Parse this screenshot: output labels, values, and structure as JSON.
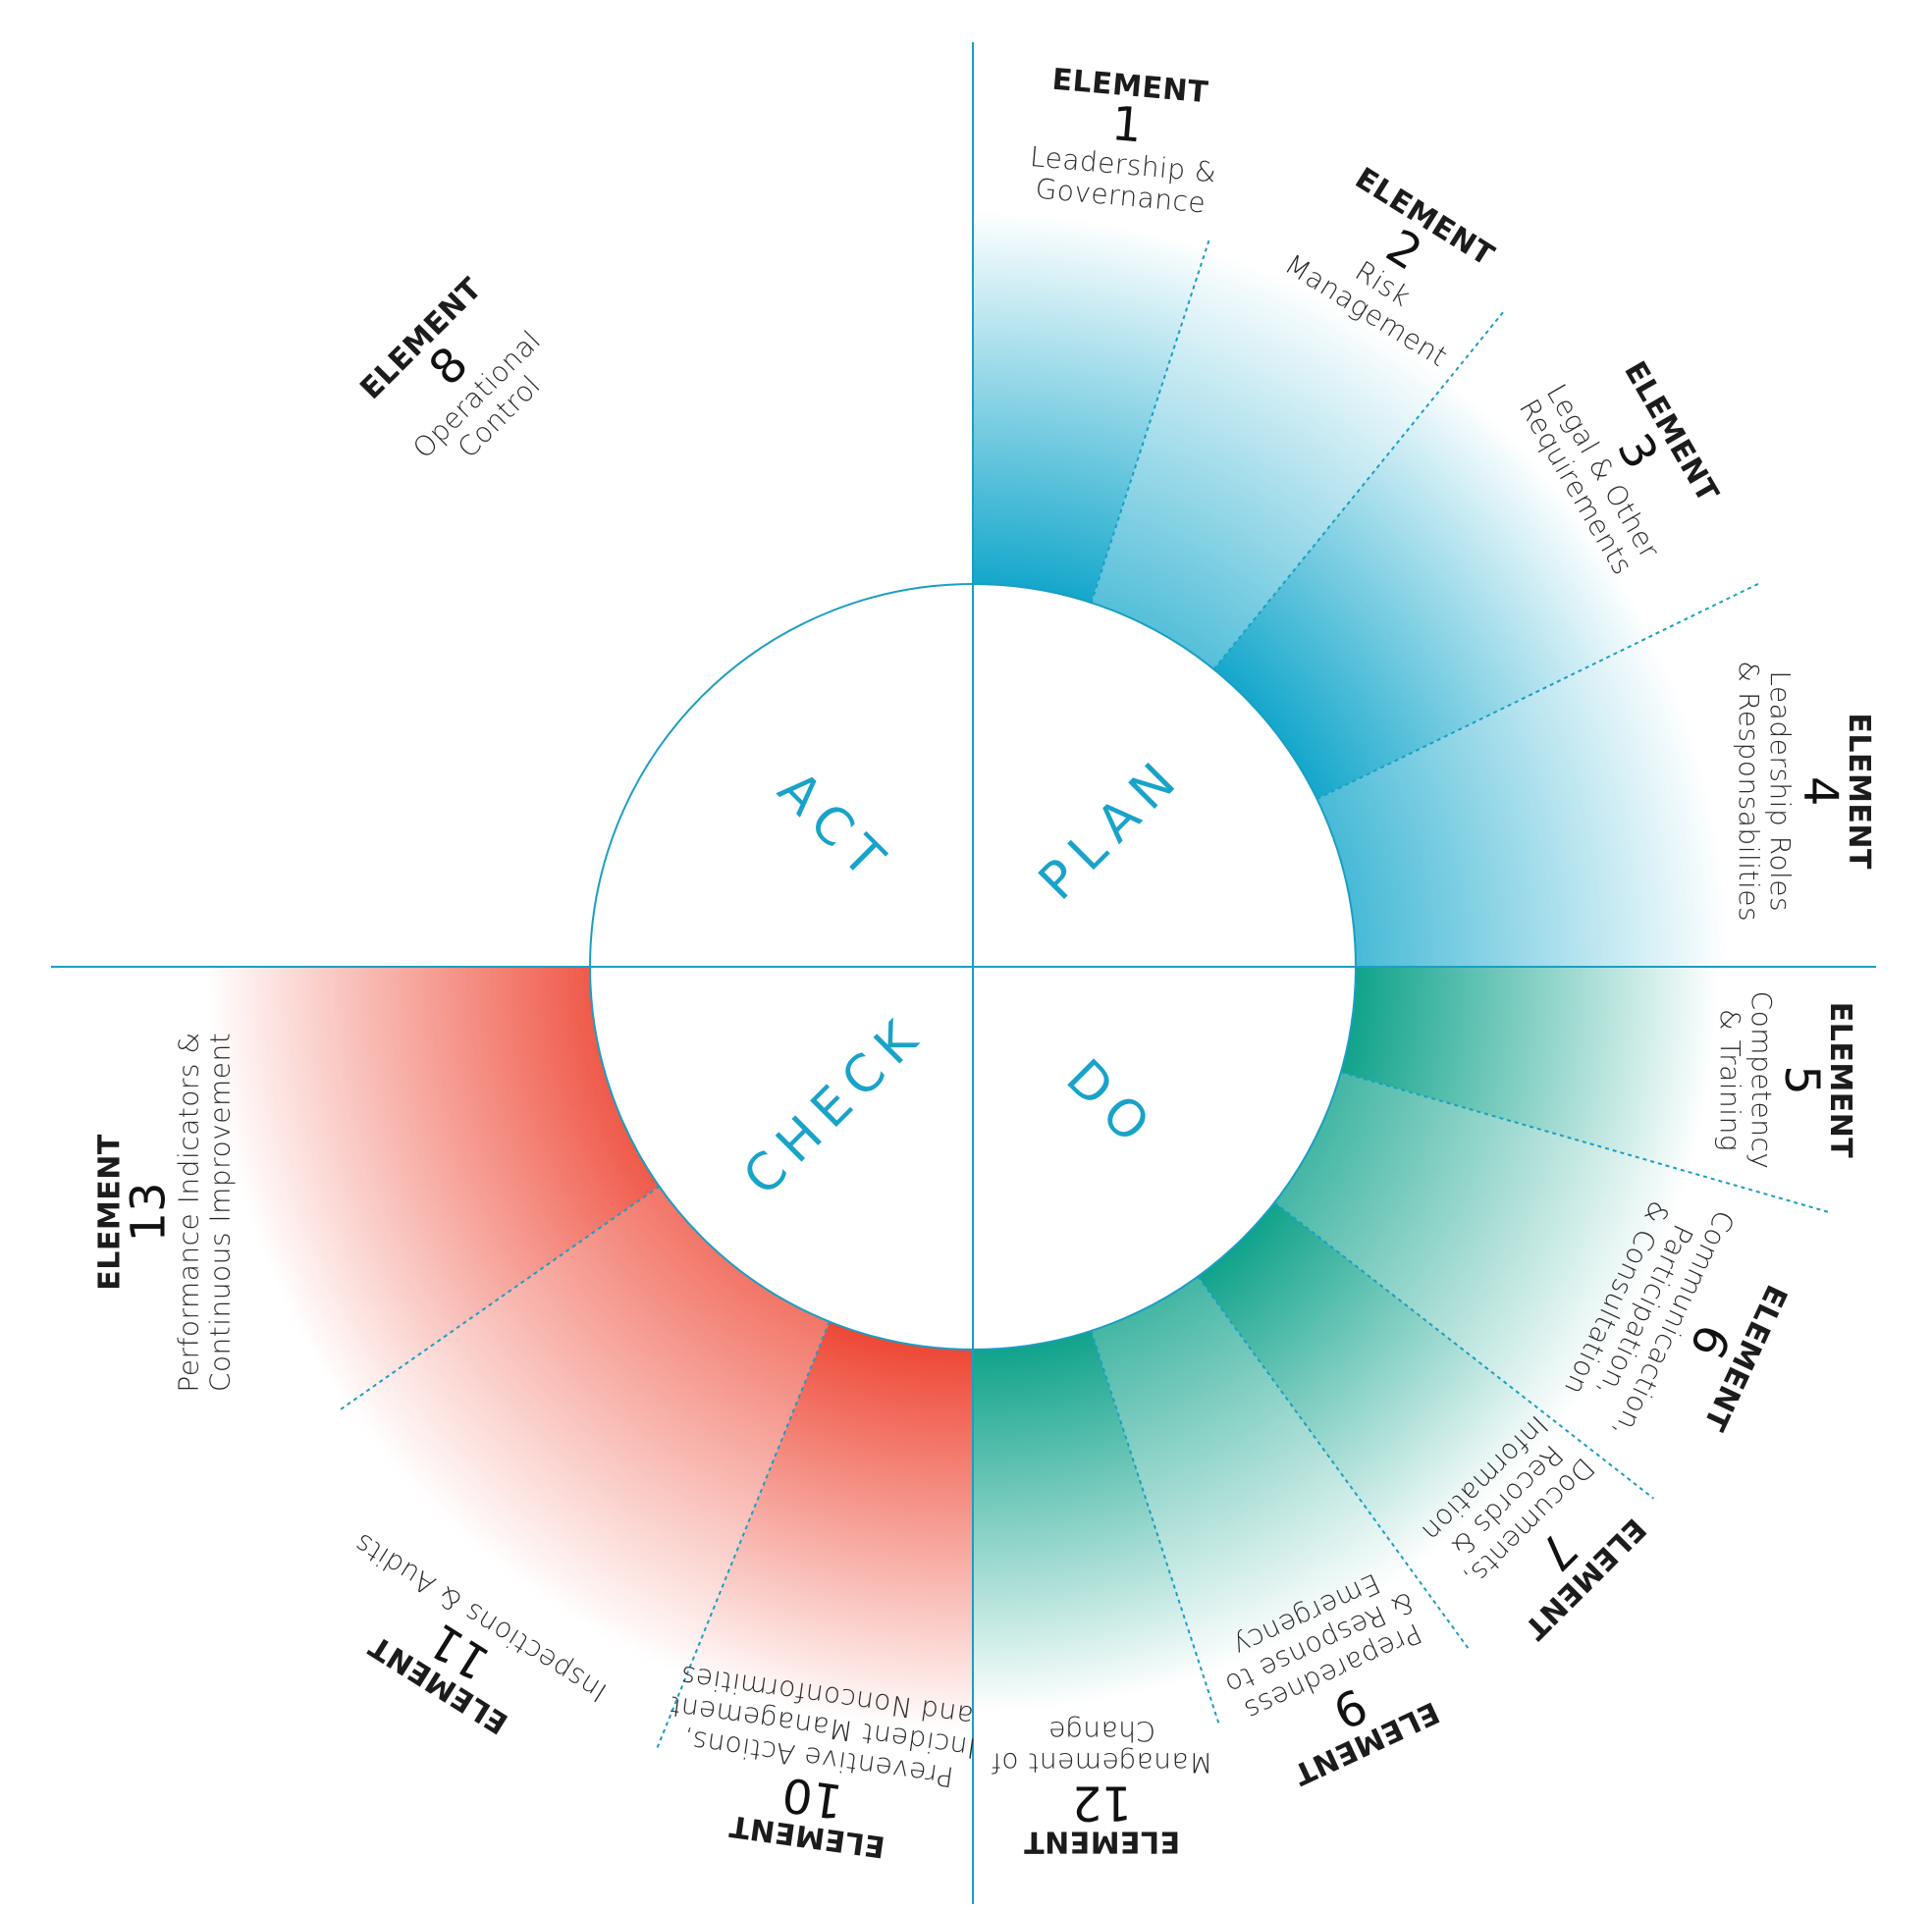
{
  "colors": {
    "plan": "#12a6cb",
    "do": "#0aa088",
    "check": "#ee4836",
    "line": "#1a9ec3",
    "phase_text": "#19a3c9",
    "text": "#1c1c1c"
  },
  "phases": [
    {
      "id": "plan",
      "label": "PLAN"
    },
    {
      "id": "do",
      "label": "DO"
    },
    {
      "id": "check",
      "label": "CHECK"
    },
    {
      "id": "act",
      "label": "ACT"
    }
  ],
  "element_keyword": "ELEMENT",
  "elements": [
    {
      "number": "1",
      "lines": [
        "Leadership &",
        "Governance"
      ],
      "phase": "plan"
    },
    {
      "number": "2",
      "lines": [
        "Risk",
        "Management"
      ],
      "phase": "plan"
    },
    {
      "number": "3",
      "lines": [
        "Legal & Other",
        "Requirements"
      ],
      "phase": "plan"
    },
    {
      "number": "4",
      "lines": [
        "Leadership Roles",
        "& Responsabilities"
      ],
      "phase": "plan"
    },
    {
      "number": "5",
      "lines": [
        "Competency",
        "& Training"
      ],
      "phase": "do"
    },
    {
      "number": "6",
      "lines": [
        "Communicaction,",
        "Participation,",
        "& Consultation"
      ],
      "phase": "do"
    },
    {
      "number": "7",
      "lines": [
        "Documents,",
        "Records &",
        "Information"
      ],
      "phase": "do"
    },
    {
      "number": "9",
      "lines": [
        "Preparedness",
        "& Response to",
        "Emergency"
      ],
      "phase": "do"
    },
    {
      "number": "12",
      "lines": [
        "Management of",
        "Change"
      ],
      "phase": "do"
    },
    {
      "number": "10",
      "lines": [
        "Preventive Actions,",
        "Incident Management",
        "and Nonconformities"
      ],
      "phase": "check"
    },
    {
      "number": "11",
      "lines": [
        "Inspections & Audits"
      ],
      "phase": "check"
    },
    {
      "number": "13",
      "lines": [
        "Performance Indicators &",
        "Continuous Improvement"
      ],
      "phase": "check"
    },
    {
      "number": "8",
      "lines": [
        "Operational",
        "Control"
      ],
      "phase": "act"
    }
  ]
}
